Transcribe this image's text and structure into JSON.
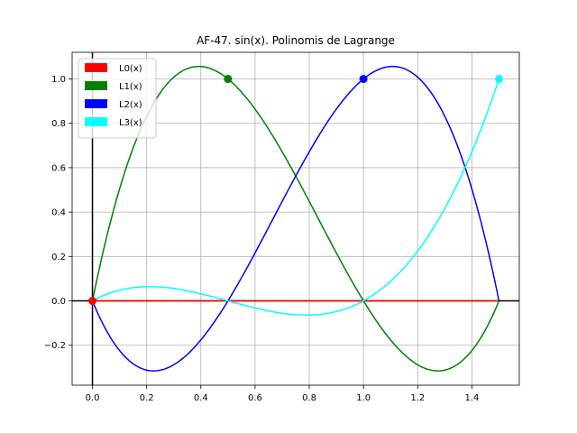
{
  "chart_data": {
    "type": "line",
    "title": "AF-47. sin(x). Polinomis de Lagrange",
    "xlabel": "",
    "ylabel": "",
    "xlim": [
      -0.075,
      1.575
    ],
    "ylim": [
      -0.38,
      1.12
    ],
    "xticks": [
      0.0,
      0.2,
      0.4,
      0.6,
      0.8,
      1.0,
      1.2,
      1.4
    ],
    "xtick_labels": [
      "0.0",
      "0.2",
      "0.4",
      "0.6",
      "0.8",
      "1.0",
      "1.2",
      "1.4"
    ],
    "yticks": [
      -0.2,
      0.0,
      0.2,
      0.4,
      0.6,
      0.8,
      1.0
    ],
    "ytick_labels": [
      "−0.2",
      "0.0",
      "0.2",
      "0.4",
      "0.6",
      "0.8",
      "1.0"
    ],
    "grid": true,
    "legend_position": "top-left",
    "nodes": [
      0.0,
      0.5,
      1.0,
      1.5
    ],
    "x_range": [
      0.0,
      1.5
    ],
    "series": [
      {
        "name": "L0(x)",
        "color": "#ff0000",
        "node_index": 0,
        "marker_x": 0.0,
        "marker_y": 0.0
      },
      {
        "name": "L1(x)",
        "color": "#008000",
        "node_index": 1,
        "marker_x": 0.5,
        "marker_y": 1.0
      },
      {
        "name": "L2(x)",
        "color": "#0000ff",
        "node_index": 2,
        "marker_x": 1.0,
        "marker_y": 1.0
      },
      {
        "name": "L3(x)",
        "color": "#00ffff",
        "node_index": 3,
        "marker_x": 1.5,
        "marker_y": 1.0
      }
    ]
  }
}
